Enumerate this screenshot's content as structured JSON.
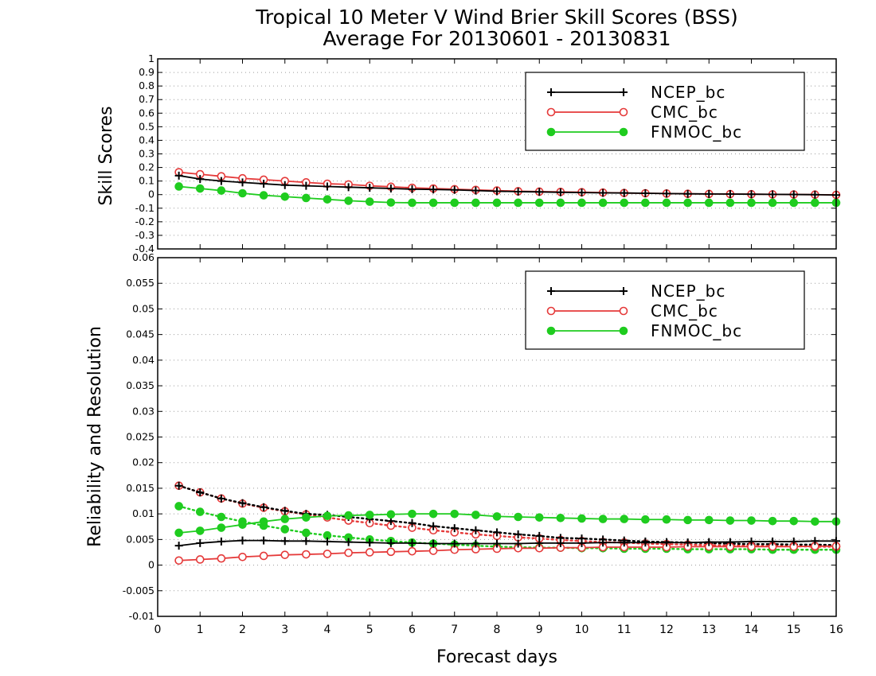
{
  "title": {
    "line1": "Tropical 10 Meter V Wind Brier Skill Scores (BSS)",
    "line2": "Average For 20130601 - 20130831"
  },
  "colors": {
    "NCEP_bc": "#000000",
    "CMC_bc": "#e53a3a",
    "FNMOC_bc": "#1fcc1f"
  },
  "chart_data": [
    {
      "type": "line",
      "ylabel": "Skill Scores",
      "xlabel": "",
      "xlim": [
        0,
        16
      ],
      "ylim": [
        -0.4,
        1
      ],
      "yticks": [
        "-0.4",
        "-0.3",
        "-0.2",
        "-0.1",
        "0",
        "0.1",
        "0.2",
        "0.3",
        "0.4",
        "0.5",
        "0.6",
        "0.7",
        "0.8",
        "0.9",
        "1"
      ],
      "grid": true,
      "legend_position": "top-right",
      "x": [
        0.5,
        1,
        1.5,
        2,
        2.5,
        3,
        3.5,
        4,
        4.5,
        5,
        5.5,
        6,
        6.5,
        7,
        7.5,
        8,
        8.5,
        9,
        9.5,
        10,
        10.5,
        11,
        11.5,
        12,
        12.5,
        13,
        13.5,
        14,
        14.5,
        15,
        15.5,
        16
      ],
      "series": [
        {
          "name": "NCEP_bc",
          "marker": "plus",
          "style": "solid",
          "values": [
            0.14,
            0.115,
            0.1,
            0.09,
            0.08,
            0.07,
            0.065,
            0.06,
            0.055,
            0.05,
            0.045,
            0.04,
            0.038,
            0.035,
            0.03,
            0.025,
            0.022,
            0.02,
            0.017,
            0.015,
            0.013,
            0.012,
            0.01,
            0.008,
            0.006,
            0.005,
            0.004,
            0.003,
            0.002,
            0.001,
            0.0,
            -0.003
          ]
        },
        {
          "name": "CMC_bc",
          "marker": "open-circle",
          "style": "solid",
          "values": [
            0.165,
            0.15,
            0.135,
            0.12,
            0.11,
            0.1,
            0.09,
            0.08,
            0.075,
            0.065,
            0.058,
            0.05,
            0.045,
            0.04,
            0.035,
            0.03,
            0.025,
            0.022,
            0.02,
            0.018,
            0.015,
            0.012,
            0.01,
            0.008,
            0.006,
            0.005,
            0.004,
            0.003,
            0.002,
            0.001,
            0.0,
            -0.002
          ]
        },
        {
          "name": "FNMOC_bc",
          "marker": "filled-circle",
          "style": "solid",
          "values": [
            0.06,
            0.045,
            0.03,
            0.01,
            -0.005,
            -0.015,
            -0.025,
            -0.035,
            -0.045,
            -0.052,
            -0.058,
            -0.06,
            -0.06,
            -0.06,
            -0.06,
            -0.06,
            -0.06,
            -0.06,
            -0.06,
            -0.06,
            -0.06,
            -0.06,
            -0.06,
            -0.06,
            -0.06,
            -0.06,
            -0.06,
            -0.06,
            -0.06,
            -0.06,
            -0.06,
            -0.06
          ]
        }
      ]
    },
    {
      "type": "line",
      "ylabel": "Reliability and Resolution",
      "xlabel": "Forecast days",
      "xlim": [
        0,
        16
      ],
      "ylim": [
        -0.01,
        0.06
      ],
      "yticks": [
        "-0.01",
        "-0.005",
        "0",
        "0.005",
        "0.01",
        "0.015",
        "0.02",
        "0.025",
        "0.03",
        "0.035",
        "0.04",
        "0.045",
        "0.05",
        "0.055",
        "0.06"
      ],
      "xticks": [
        "0",
        "1",
        "2",
        "3",
        "4",
        "5",
        "6",
        "7",
        "8",
        "9",
        "10",
        "11",
        "12",
        "13",
        "14",
        "15",
        "16"
      ],
      "grid": true,
      "legend_position": "top-right",
      "x": [
        0.5,
        1,
        1.5,
        2,
        2.5,
        3,
        3.5,
        4,
        4.5,
        5,
        5.5,
        6,
        6.5,
        7,
        7.5,
        8,
        8.5,
        9,
        9.5,
        10,
        10.5,
        11,
        11.5,
        12,
        12.5,
        13,
        13.5,
        14,
        14.5,
        15,
        15.5,
        16
      ],
      "series": [
        {
          "name": "NCEP_bc",
          "marker": "plus",
          "style": "solid",
          "values": [
            0.0038,
            0.0043,
            0.0046,
            0.0048,
            0.0048,
            0.0047,
            0.0047,
            0.0046,
            0.0045,
            0.0044,
            0.0043,
            0.0043,
            0.0042,
            0.0042,
            0.0042,
            0.0042,
            0.0042,
            0.0043,
            0.0043,
            0.0043,
            0.0044,
            0.0044,
            0.0044,
            0.0044,
            0.0044,
            0.0045,
            0.0045,
            0.0046,
            0.0046,
            0.0046,
            0.0047,
            0.0047
          ]
        },
        {
          "name": "CMC_bc",
          "marker": "open-circle",
          "style": "solid",
          "values": [
            0.0009,
            0.0011,
            0.0013,
            0.0016,
            0.0018,
            0.002,
            0.0021,
            0.0022,
            0.0024,
            0.0025,
            0.0026,
            0.0027,
            0.0028,
            0.003,
            0.0031,
            0.0032,
            0.0033,
            0.0033,
            0.0034,
            0.0034,
            0.0035,
            0.0035,
            0.0035,
            0.0035,
            0.0036,
            0.0036,
            0.0036,
            0.0036,
            0.0036,
            0.0036,
            0.0037,
            0.0037
          ]
        },
        {
          "name": "FNMOC_bc",
          "marker": "filled-circle",
          "style": "solid",
          "values": [
            0.0063,
            0.0067,
            0.0073,
            0.0079,
            0.0085,
            0.009,
            0.0093,
            0.0096,
            0.0097,
            0.0098,
            0.0099,
            0.01,
            0.01,
            0.01,
            0.0098,
            0.0095,
            0.0094,
            0.0093,
            0.0092,
            0.0091,
            0.009,
            0.009,
            0.0089,
            0.0089,
            0.0088,
            0.0088,
            0.0087,
            0.0087,
            0.0086,
            0.0086,
            0.0085,
            0.0085
          ]
        },
        {
          "name": "",
          "marker": "plus",
          "style": "dotted",
          "legend": false,
          "color_key": "NCEP_bc",
          "values": [
            0.0155,
            0.0142,
            0.013,
            0.0121,
            0.0113,
            0.0106,
            0.01,
            0.0098,
            0.0094,
            0.009,
            0.0086,
            0.0082,
            0.0076,
            0.0072,
            0.0068,
            0.0064,
            0.006,
            0.0057,
            0.0053,
            0.0052,
            0.005,
            0.0048,
            0.0046,
            0.0045,
            0.0044,
            0.0043,
            0.0042,
            0.0041,
            0.0041,
            0.004,
            0.004,
            0.0039
          ]
        },
        {
          "name": "",
          "marker": "open-circle",
          "style": "dotted",
          "legend": false,
          "color_key": "CMC_bc",
          "values": [
            0.0155,
            0.0142,
            0.013,
            0.012,
            0.0112,
            0.0105,
            0.0099,
            0.0093,
            0.0087,
            0.0082,
            0.0077,
            0.0073,
            0.0068,
            0.0064,
            0.006,
            0.0057,
            0.0054,
            0.0052,
            0.0049,
            0.0047,
            0.0045,
            0.0044,
            0.0042,
            0.0041,
            0.004,
            0.0039,
            0.0038,
            0.0038,
            0.0037,
            0.0037,
            0.0036,
            0.0036
          ]
        },
        {
          "name": "",
          "marker": "filled-circle",
          "style": "dotted",
          "legend": false,
          "color_key": "FNMOC_bc",
          "values": [
            0.0115,
            0.0104,
            0.0094,
            0.0085,
            0.0077,
            0.007,
            0.0063,
            0.0058,
            0.0054,
            0.005,
            0.0047,
            0.0044,
            0.0042,
            0.004,
            0.0038,
            0.0036,
            0.0035,
            0.0034,
            0.0034,
            0.0033,
            0.0033,
            0.0032,
            0.0032,
            0.0032,
            0.0031,
            0.0031,
            0.0031,
            0.0031,
            0.003,
            0.003,
            0.003,
            0.003
          ]
        }
      ]
    }
  ]
}
